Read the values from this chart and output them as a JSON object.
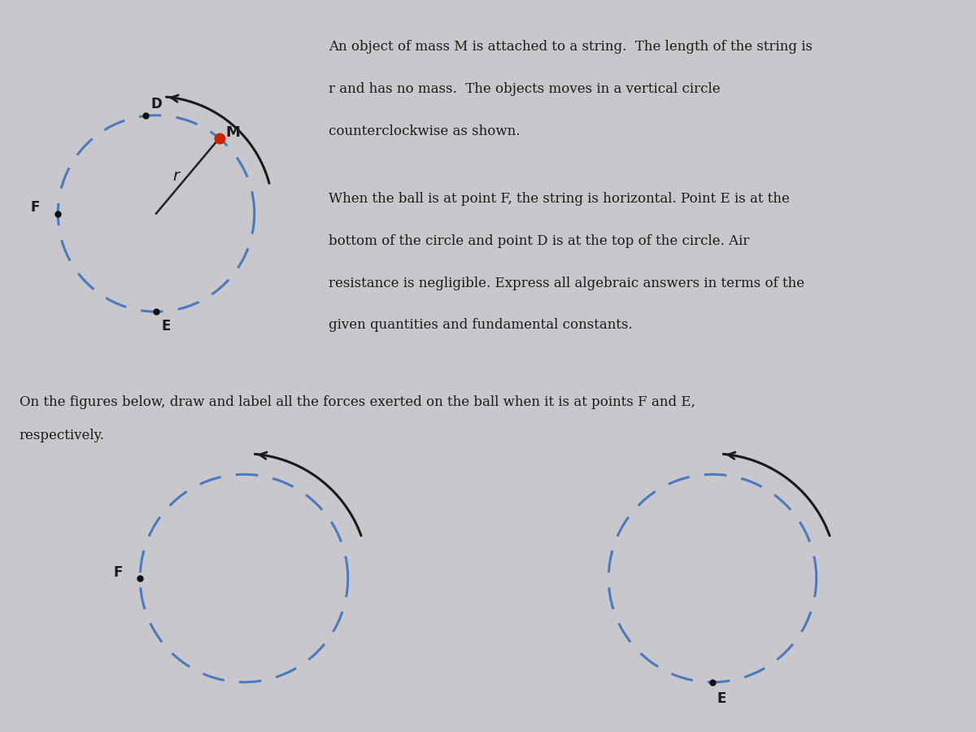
{
  "bg_color": "#c8c8cc",
  "text_color": "#1a1a1a",
  "circle_color": "#4a7abf",
  "circle_lw": 2.2,
  "arrow_color": "#1a1a1a",
  "dot_color_M": "#cc2200",
  "dot_color_pts": "#111111",
  "p1_line1": "An object of mass M is attached to a string.  The length of the string is",
  "p1_line2": "r and has no mass.  The objects moves in a vertical circle",
  "p1_line3": "counterclockwise as shown.",
  "p2_line1": "When the ball is at point F, the string is horizontal. Point E is at the",
  "p2_line2": "bottom of the circle and point D is at the top of the circle. Air",
  "p2_line3": "resistance is negligible. Express all algebraic answers in terms of the",
  "p2_line4": "given quantities and fundamental constants.",
  "bottom_text1": "On the figures below, draw and label all the forces exerted on the ball when it is at points F and E,",
  "bottom_text2": "respectively."
}
